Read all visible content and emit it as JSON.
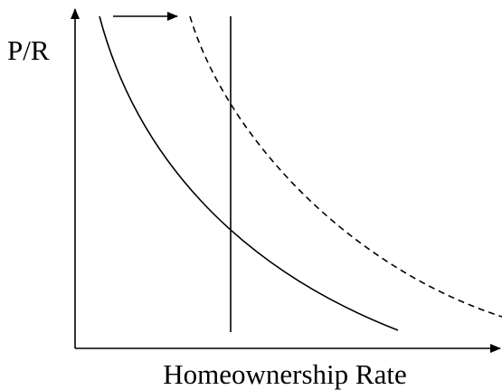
{
  "y_axis_label": "P/R",
  "x_axis_label": "Homeownership Rate"
}
